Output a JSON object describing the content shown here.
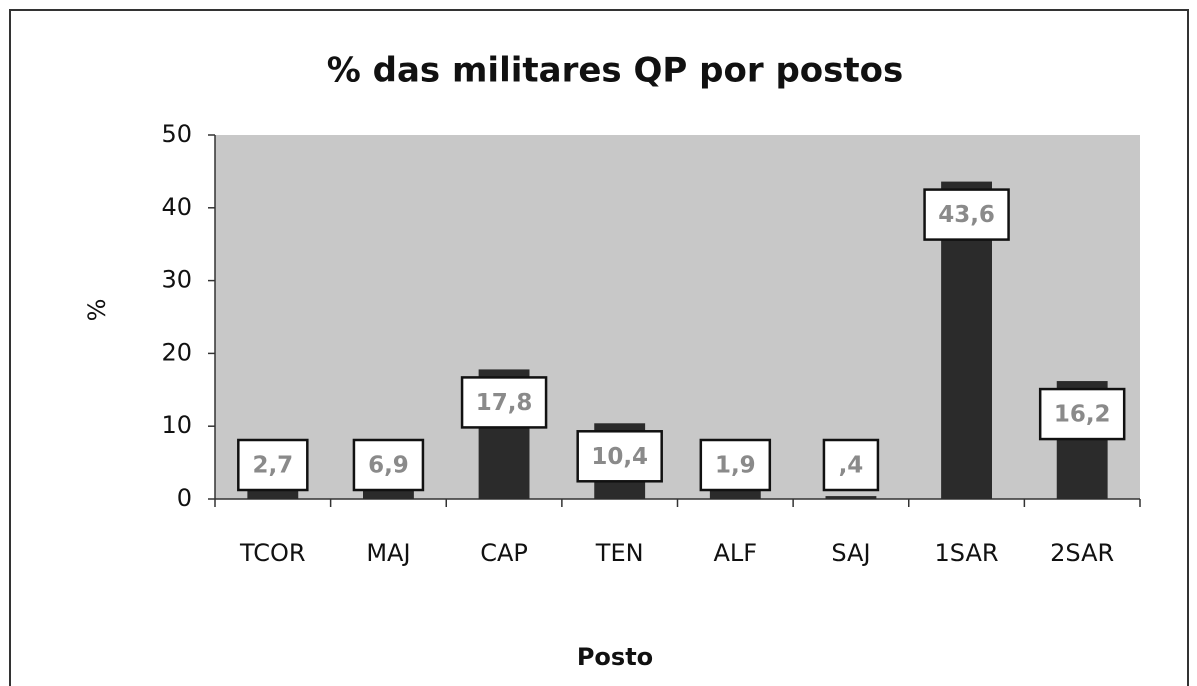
{
  "chart_data": {
    "type": "bar",
    "title": "% das militares QP por postos",
    "x_label": "Posto",
    "y_label": "%",
    "categories": [
      "TCOR",
      "MAJ",
      "CAP",
      "TEN",
      "ALF",
      "SAJ",
      "1SAR",
      "2SAR"
    ],
    "values": [
      2.7,
      6.9,
      17.8,
      10.4,
      1.9,
      0.4,
      43.6,
      16.2
    ],
    "value_labels": [
      "2,7",
      "6,9",
      "17,8",
      "10,4",
      "1,9",
      ",4",
      "43,6",
      "16,2"
    ],
    "color": "#2b2b2b",
    "ylim": [
      0,
      50
    ],
    "yticks": [
      0,
      10,
      20,
      30,
      40,
      50
    ],
    "grid": false
  }
}
